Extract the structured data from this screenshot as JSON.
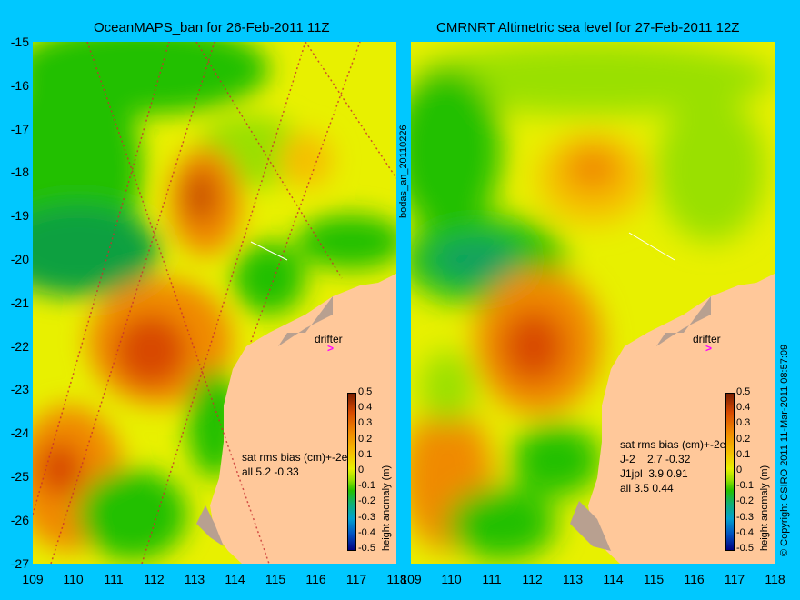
{
  "left_panel": {
    "title": "OceanMAPS_ban for 26-Feb-2011 11Z",
    "drifter_label": "drifter",
    "bias_header": "sat rms bias (cm)+-2e",
    "bias_rows": [
      "all 5.2 -0.33"
    ]
  },
  "right_panel": {
    "title": "CMRNRT Altimetric sea level  for 27-Feb-2011 12Z",
    "drifter_label": "drifter",
    "bias_header": "sat rms bias (cm)+-2e",
    "bias_rows": [
      "J-2    2.7 -0.32",
      "J1jpl  3.9 0.91",
      "all 3.5 0.44"
    ]
  },
  "side_label_middle": "bodas_an_20110226",
  "side_label_right": "© Copyright CSIRO 2011   11-Mar-2011 08:57:09",
  "y_axis_ticks": [
    "-15",
    "-16",
    "-17",
    "-18",
    "-19",
    "-20",
    "-21",
    "-22",
    "-23",
    "-24",
    "-25",
    "-26",
    "-27"
  ],
  "x_axis_ticks": [
    "109",
    "110",
    "111",
    "112",
    "113",
    "114",
    "115",
    "116",
    "117",
    "118"
  ],
  "colorbar": {
    "label": "height anomaly (m)",
    "ticks": [
      "0.5",
      "0.4",
      "0.3",
      "0.2",
      "0.1",
      "0",
      "-0.1",
      "-0.2",
      "-0.3",
      "-0.4",
      "-0.5"
    ]
  },
  "colors": {
    "background": "#00c8ff",
    "land": "#ffc89a",
    "drifter_arrow": "#ff00ff"
  }
}
